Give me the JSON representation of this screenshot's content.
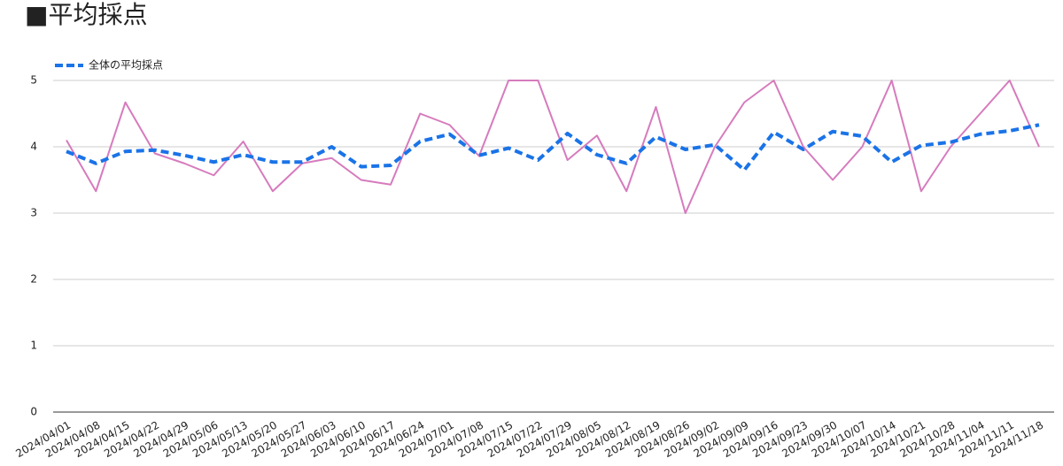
{
  "chart_data": {
    "type": "line",
    "title": "■平均採点",
    "categories": [
      "2024/04/01",
      "2024/04/08",
      "2024/04/15",
      "2024/04/22",
      "2024/04/29",
      "2024/05/06",
      "2024/05/13",
      "2024/05/20",
      "2024/05/27",
      "2024/06/03",
      "2024/06/10",
      "2024/06/17",
      "2024/06/24",
      "2024/07/01",
      "2024/07/08",
      "2024/07/15",
      "2024/07/22",
      "2024/07/29",
      "2024/08/05",
      "2024/08/12",
      "2024/08/19",
      "2024/08/26",
      "2024/09/02",
      "2024/09/09",
      "2024/09/16",
      "2024/09/23",
      "2024/09/30",
      "2024/10/07",
      "2024/10/14",
      "2024/10/21",
      "2024/10/28",
      "2024/11/04",
      "2024/11/11",
      "2024/11/18"
    ],
    "series": [
      {
        "color": "#d67bbd",
        "values": [
          4.1,
          3.33,
          4.67,
          3.9,
          3.75,
          3.57,
          4.08,
          3.33,
          3.75,
          3.83,
          3.5,
          3.43,
          4.5,
          4.33,
          3.86,
          5,
          5,
          3.8,
          4.17,
          3.33,
          4.6,
          3.0,
          4.0,
          4.67,
          5,
          4.0,
          3.5,
          4.0,
          5,
          3.33,
          4.0,
          4.5,
          5,
          4.0
        ]
      },
      {
        "name": "全体の平均採点",
        "color": "#1a73e8",
        "dashed": true,
        "values": [
          3.93,
          3.75,
          3.93,
          3.95,
          3.87,
          3.77,
          3.88,
          3.77,
          3.77,
          4.0,
          3.7,
          3.72,
          4.08,
          4.19,
          3.87,
          3.98,
          3.8,
          4.2,
          3.88,
          3.75,
          4.15,
          3.96,
          4.03,
          3.65,
          4.22,
          3.96,
          4.23,
          4.16,
          3.77,
          4.02,
          4.07,
          4.19,
          4.24,
          4.33
        ]
      }
    ],
    "ylim": [
      0,
      5
    ],
    "yticks": [
      0,
      1,
      2,
      3,
      4,
      5
    ],
    "grid": true,
    "legend": "top-left"
  }
}
